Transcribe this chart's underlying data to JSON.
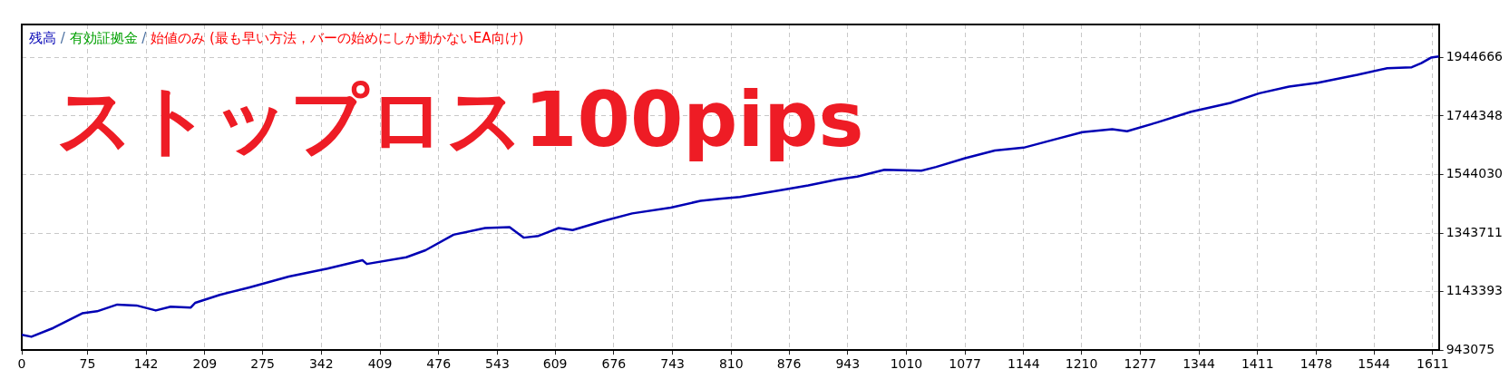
{
  "chart_data": {
    "type": "line",
    "x": [
      0,
      11,
      36,
      69,
      86,
      109,
      131,
      153,
      170,
      193,
      198,
      226,
      260,
      305,
      349,
      389,
      394,
      439,
      461,
      493,
      529,
      557,
      573,
      590,
      613,
      629,
      663,
      697,
      741,
      775,
      797,
      820,
      865,
      898,
      931,
      954,
      985,
      1027,
      1044,
      1077,
      1111,
      1144,
      1178,
      1211,
      1245,
      1262,
      1296,
      1335,
      1380,
      1413,
      1447,
      1480,
      1525,
      1559,
      1587,
      1598,
      1609,
      1618
    ],
    "series": [
      {
        "name": "残高",
        "color": "#0000b4",
        "values": [
          996000,
          989000,
          1019000,
          1069000,
          1076000,
          1099000,
          1096000,
          1079000,
          1092000,
          1089000,
          1105000,
          1132000,
          1158000,
          1195000,
          1222000,
          1251000,
          1238000,
          1261000,
          1285000,
          1338000,
          1361000,
          1364000,
          1328000,
          1334000,
          1361000,
          1354000,
          1384000,
          1411000,
          1431000,
          1454000,
          1461000,
          1467000,
          1490000,
          1507000,
          1527000,
          1537000,
          1560000,
          1557000,
          1570000,
          1600000,
          1626000,
          1636000,
          1663000,
          1689000,
          1699000,
          1692000,
          1722000,
          1759000,
          1789000,
          1822000,
          1845000,
          1858000,
          1885000,
          1908000,
          1911000,
          1925000,
          1944000,
          1948000
        ]
      },
      {
        "name": "有効証拠金",
        "color": "#00a000",
        "values": [
          null,
          null,
          null,
          null,
          null,
          null,
          null,
          null,
          null,
          null,
          null,
          null,
          null,
          null,
          null,
          null,
          null,
          null,
          null,
          null,
          null,
          null,
          null,
          null,
          null,
          null,
          null,
          null,
          null,
          null,
          null,
          null,
          null,
          null,
          null,
          null,
          null,
          null,
          null,
          null,
          null,
          null,
          null,
          null,
          null,
          null,
          null,
          null,
          null,
          null,
          null,
          null,
          null,
          null,
          null,
          null,
          null,
          null
        ]
      }
    ],
    "annotations": [
      "/",
      "始値のみ (最も早い方法，バーの始めにしか動かないEA向け)",
      "ストップロス100pips"
    ],
    "xlim": [
      0,
      1618
    ],
    "xticks": [
      0,
      75,
      142,
      209,
      275,
      342,
      409,
      476,
      543,
      609,
      676,
      743,
      810,
      876,
      943,
      1010,
      1077,
      1144,
      1210,
      1277,
      1344,
      1411,
      1478,
      1544,
      1611
    ],
    "ylim": [
      943075,
      2057400
    ],
    "yticks": [
      943075,
      1143393,
      1343711,
      1544030,
      1744348,
      1944666
    ],
    "grid": true,
    "legend": "top left",
    "marker": "none",
    "line_style": "solid"
  }
}
